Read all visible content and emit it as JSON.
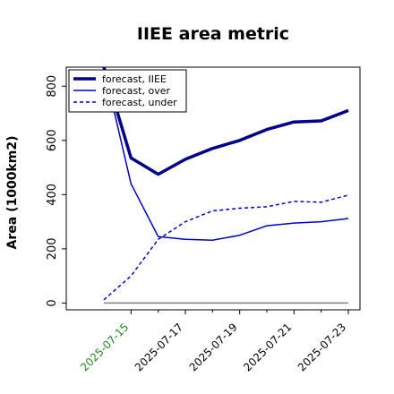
{
  "chart_data": {
    "type": "line",
    "title": "IIEE area metric",
    "xlabel": "",
    "ylabel": "Area (1000km2)",
    "x": [
      "2025-07-14",
      "2025-07-15",
      "2025-07-16",
      "2025-07-17",
      "2025-07-18",
      "2025-07-19",
      "2025-07-20",
      "2025-07-21",
      "2025-07-22",
      "2025-07-23"
    ],
    "x_tick_labels": [
      "2025-07-15",
      "2025-07-17",
      "2025-07-19",
      "2025-07-21",
      "2025-07-23"
    ],
    "x_tick_colors": [
      "#228B22",
      "#000000",
      "#000000",
      "#000000",
      "#000000"
    ],
    "ylim": [
      -25,
      870
    ],
    "y_ticks": [
      0,
      200,
      400,
      600,
      800
    ],
    "grid": false,
    "legend_position": "upper-left",
    "series": [
      {
        "name": "forecast, IIEE",
        "color": "#00008B",
        "style": "solid",
        "width": "thick",
        "values": [
          870,
          535,
          475,
          530,
          570,
          600,
          640,
          668,
          672,
          710
        ]
      },
      {
        "name": "forecast, over",
        "color": "#0000CD",
        "style": "solid",
        "width": "thin",
        "values": [
          870,
          440,
          245,
          235,
          232,
          250,
          285,
          295,
          300,
          312
        ]
      },
      {
        "name": "forecast, under",
        "color": "#0000CD",
        "style": "dashed",
        "width": "thin",
        "values": [
          12,
          100,
          235,
          300,
          340,
          350,
          355,
          375,
          372,
          398
        ]
      },
      {
        "name": "",
        "color": "#808080",
        "style": "solid",
        "width": "thin",
        "values": [
          0,
          0,
          0,
          0,
          0,
          0,
          0,
          0,
          0,
          0
        ]
      }
    ]
  }
}
